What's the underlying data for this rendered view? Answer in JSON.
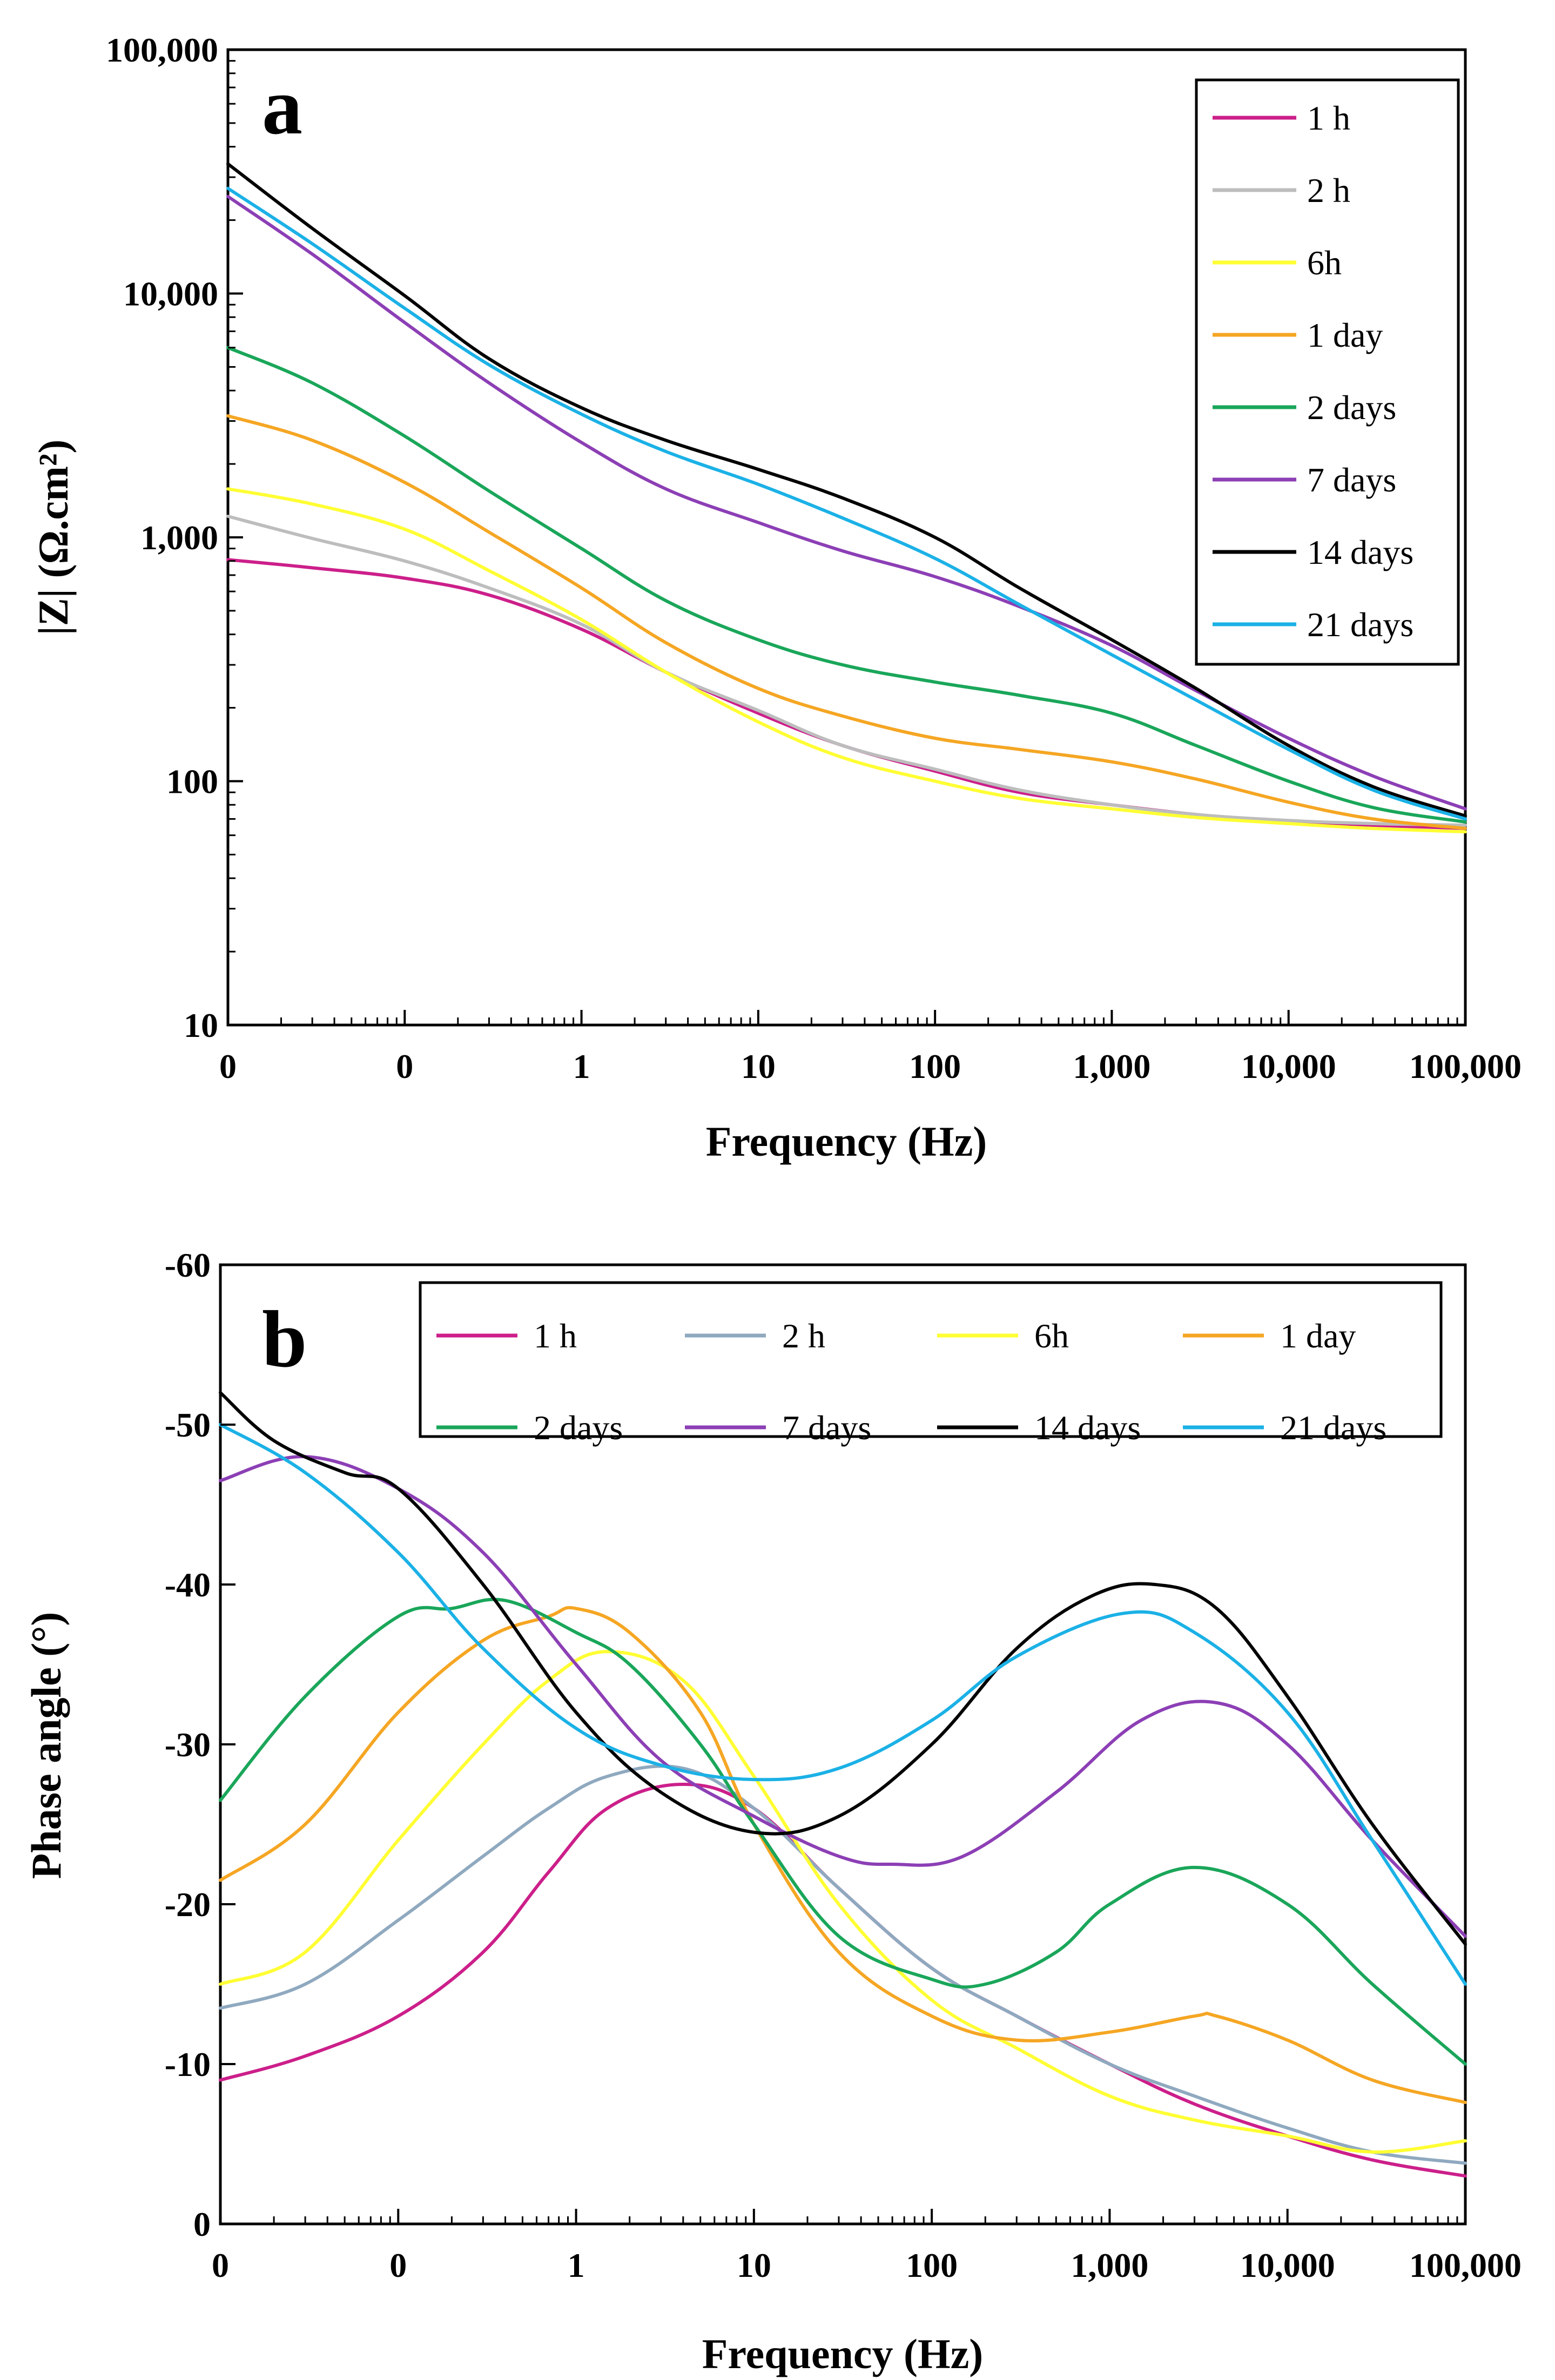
{
  "chart_data": [
    {
      "type": "line",
      "panel_label": "a",
      "title": "",
      "xlabel": "Frequency (Hz)",
      "ylabel": "|Z| (Ω.cm²)",
      "xscale": "log",
      "yscale": "log",
      "xlim": [
        0.01,
        100000
      ],
      "ylim": [
        10,
        100000
      ],
      "x_tick_values": [
        0.01,
        0.1,
        1,
        10,
        100,
        1000,
        10000,
        100000
      ],
      "x_tick_labels": [
        "0",
        "0",
        "1",
        "10",
        "100",
        "1,000",
        "10,000",
        "100,000"
      ],
      "y_tick_values": [
        10,
        100,
        1000,
        10000,
        100000
      ],
      "y_tick_labels": [
        "10",
        "100",
        "1,000",
        "10,000",
        "100,000"
      ],
      "legend_position": "top-right",
      "legend_columns": 1,
      "series": [
        {
          "name": "1 h",
          "color": "#cc1f8a",
          "x": [
            0.01,
            0.03,
            0.1,
            0.3,
            1,
            3,
            10,
            30,
            100,
            300,
            1000,
            3000,
            10000,
            30000,
            100000
          ],
          "y": [
            810,
            750,
            680,
            580,
            420,
            280,
            190,
            140,
            110,
            90,
            80,
            73,
            68,
            66,
            64
          ]
        },
        {
          "name": "2 h",
          "color": "#bdbdbd",
          "x": [
            0.01,
            0.03,
            0.1,
            0.3,
            1,
            3,
            10,
            30,
            100,
            300,
            1000,
            3000,
            10000,
            30000,
            100000
          ],
          "y": [
            1220,
            990,
            800,
            620,
            440,
            280,
            195,
            140,
            112,
            92,
            80,
            73,
            69,
            67,
            66
          ]
        },
        {
          "name": "6h",
          "color": "#ffff33",
          "x": [
            0.01,
            0.03,
            0.1,
            0.3,
            1,
            3,
            10,
            30,
            100,
            300,
            1000,
            3000,
            10000,
            30000,
            100000
          ],
          "y": [
            1580,
            1370,
            1080,
            730,
            460,
            280,
            175,
            125,
            100,
            85,
            77,
            71,
            67,
            64,
            62
          ]
        },
        {
          "name": "1 day",
          "color": "#f5a623",
          "x": [
            0.01,
            0.03,
            0.1,
            0.3,
            1,
            3,
            10,
            30,
            100,
            300,
            1000,
            3000,
            10000,
            30000,
            100000
          ],
          "y": [
            3150,
            2500,
            1680,
            1050,
            620,
            370,
            240,
            185,
            150,
            135,
            120,
            102,
            82,
            70,
            64
          ]
        },
        {
          "name": "2 days",
          "color": "#1aa65a",
          "x": [
            0.01,
            0.03,
            0.1,
            0.3,
            1,
            3,
            10,
            30,
            100,
            300,
            1000,
            3000,
            10000,
            30000,
            100000
          ],
          "y": [
            6000,
            4300,
            2600,
            1550,
            900,
            550,
            380,
            300,
            255,
            225,
            190,
            140,
            100,
            78,
            68
          ]
        },
        {
          "name": "7 days",
          "color": "#8c3fb5",
          "x": [
            0.01,
            0.03,
            0.1,
            0.3,
            1,
            3,
            10,
            30,
            100,
            300,
            1000,
            3000,
            10000,
            30000,
            100000
          ],
          "y": [
            25000,
            14500,
            7600,
            4300,
            2450,
            1580,
            1150,
            880,
            690,
            520,
            360,
            235,
            150,
            105,
            77
          ]
        },
        {
          "name": "14 days",
          "color": "#000000",
          "x": [
            0.01,
            0.03,
            0.1,
            0.3,
            1,
            3,
            10,
            30,
            100,
            300,
            1000,
            3000,
            10000,
            30000,
            100000
          ],
          "y": [
            34000,
            18500,
            9800,
            5400,
            3400,
            2500,
            1900,
            1450,
            1000,
            620,
            380,
            240,
            140,
            95,
            72
          ]
        },
        {
          "name": "21 days",
          "color": "#1bb1e6",
          "x": [
            0.01,
            0.03,
            0.1,
            0.3,
            1,
            3,
            10,
            30,
            100,
            300,
            1000,
            3000,
            10000,
            30000,
            100000
          ],
          "y": [
            27000,
            16000,
            8700,
            5100,
            3200,
            2250,
            1650,
            1200,
            820,
            530,
            330,
            215,
            135,
            92,
            70
          ]
        }
      ]
    },
    {
      "type": "line",
      "panel_label": "b",
      "title": "",
      "xlabel": "Frequency (Hz)",
      "ylabel": "Phase angle (°)",
      "xscale": "log",
      "yscale": "linear",
      "xlim": [
        0.01,
        100000
      ],
      "ylim": [
        0,
        -60
      ],
      "x_tick_values": [
        0.01,
        0.1,
        1,
        10,
        100,
        1000,
        10000,
        100000
      ],
      "x_tick_labels": [
        "0",
        "0",
        "1",
        "10",
        "100",
        "1,000",
        "10,000",
        "100,000"
      ],
      "y_tick_values": [
        0,
        -10,
        -20,
        -30,
        -40,
        -50,
        -60
      ],
      "y_tick_labels": [
        "0",
        "-10",
        "-20",
        "-30",
        "-40",
        "-50",
        "-60"
      ],
      "legend_position": "top",
      "legend_columns": 4,
      "series": [
        {
          "name": "1 h",
          "color": "#cc1f8a",
          "x": [
            0.01,
            0.03,
            0.1,
            0.3,
            0.7,
            1.5,
            4,
            10,
            30,
            100,
            300,
            1000,
            3000,
            10000,
            30000,
            100000
          ],
          "y": [
            -9,
            -10.5,
            -13,
            -17,
            -22,
            -26,
            -27.5,
            -26,
            -21,
            -16,
            -13,
            -10,
            -7.5,
            -5.5,
            -4,
            -3
          ]
        },
        {
          "name": "2 h",
          "color": "#8fa9bf",
          "x": [
            0.01,
            0.03,
            0.1,
            0.3,
            0.7,
            1.5,
            4,
            10,
            30,
            100,
            300,
            1000,
            3000,
            10000,
            30000,
            100000
          ],
          "y": [
            -13.5,
            -15,
            -19,
            -23,
            -26,
            -28,
            -28.5,
            -26,
            -21,
            -16,
            -13,
            -10,
            -8,
            -6,
            -4.5,
            -3.8
          ]
        },
        {
          "name": "6h",
          "color": "#ffff33",
          "x": [
            0.01,
            0.03,
            0.1,
            0.3,
            0.7,
            1.5,
            4,
            10,
            30,
            100,
            300,
            1000,
            3000,
            10000,
            30000,
            100000
          ],
          "y": [
            -15,
            -17,
            -24,
            -30,
            -34,
            -35.8,
            -34,
            -28,
            -20,
            -14,
            -11,
            -8,
            -6.5,
            -5.5,
            -4.5,
            -5.2
          ]
        },
        {
          "name": "1 day",
          "color": "#f5a623",
          "x": [
            0.01,
            0.03,
            0.1,
            0.3,
            0.7,
            1,
            2,
            5,
            10,
            30,
            100,
            300,
            1000,
            3000,
            4000,
            10000,
            30000,
            100000
          ],
          "y": [
            -21.5,
            -25,
            -32,
            -36.5,
            -38,
            -38.5,
            -37,
            -32,
            -25,
            -17,
            -13,
            -11.5,
            -12,
            -13,
            -13,
            -11.5,
            -9,
            -7.6
          ]
        },
        {
          "name": "2 days",
          "color": "#1aa65a",
          "x": [
            0.01,
            0.03,
            0.1,
            0.2,
            0.4,
            1,
            2,
            5,
            10,
            30,
            100,
            200,
            500,
            1000,
            3000,
            10000,
            30000,
            100000
          ],
          "y": [
            -26.5,
            -33,
            -38,
            -38.5,
            -39,
            -37,
            -35,
            -30,
            -25,
            -18,
            -15.3,
            -15,
            -17,
            -20,
            -22.3,
            -20,
            -15,
            -10
          ]
        },
        {
          "name": "7 days",
          "color": "#8c3fb5",
          "x": [
            0.01,
            0.03,
            0.1,
            0.3,
            1,
            3,
            10,
            30,
            60,
            150,
            500,
            1500,
            4000,
            10000,
            30000,
            100000
          ],
          "y": [
            -46.5,
            -48,
            -46,
            -42,
            -35,
            -29,
            -25.5,
            -23,
            -22.5,
            -23,
            -27,
            -31.5,
            -32.6,
            -30,
            -24,
            -18
          ]
        },
        {
          "name": "14 days",
          "color": "#000000",
          "x": [
            0.01,
            0.02,
            0.05,
            0.1,
            0.3,
            1,
            3,
            10,
            30,
            100,
            300,
            800,
            1800,
            4000,
            10000,
            30000,
            100000
          ],
          "y": [
            -52,
            -49,
            -47,
            -46,
            -40,
            -32,
            -27,
            -24.5,
            -25.5,
            -30,
            -36,
            -39.3,
            -40,
            -38.5,
            -33,
            -25,
            -17.5
          ]
        },
        {
          "name": "21 days",
          "color": "#1bb1e6",
          "x": [
            0.01,
            0.03,
            0.1,
            0.3,
            1,
            3,
            10,
            30,
            100,
            300,
            1200,
            3000,
            10000,
            30000,
            100000
          ],
          "y": [
            -50,
            -47,
            -42,
            -36,
            -31,
            -28.7,
            -27.8,
            -28.5,
            -31.5,
            -35.5,
            -38.2,
            -37,
            -32,
            -24,
            -15
          ]
        }
      ]
    }
  ]
}
